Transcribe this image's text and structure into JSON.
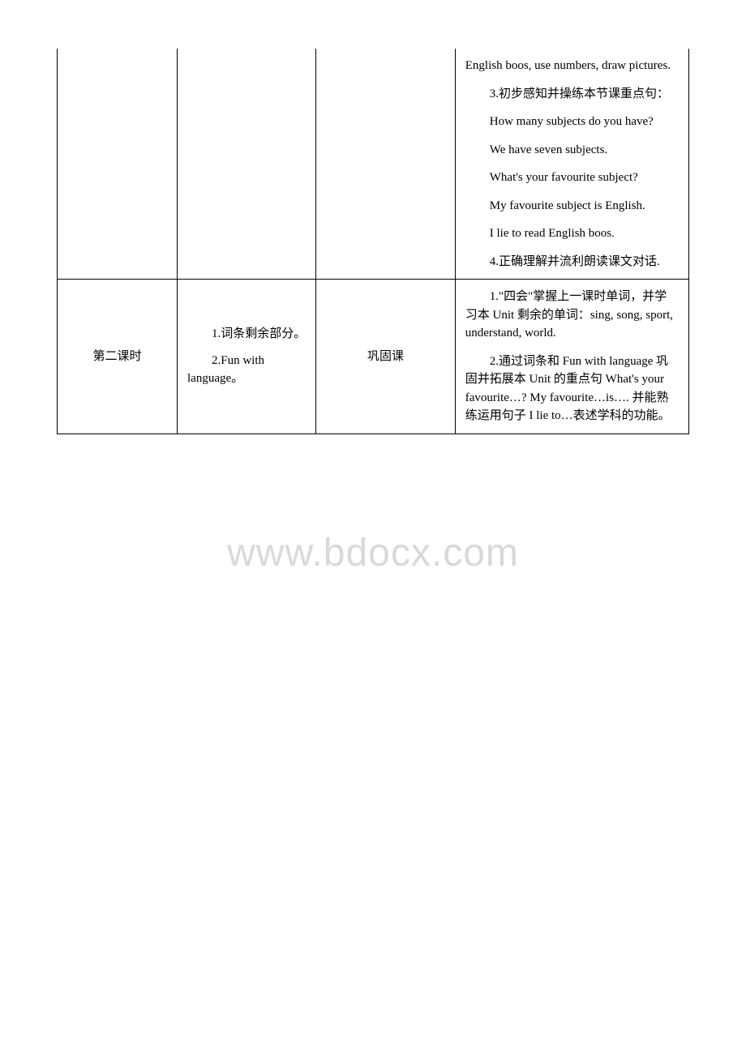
{
  "watermark": "www.bdocx.com",
  "row1": {
    "col1": "",
    "col2": "",
    "col3": "",
    "col4": {
      "p1": "English boos, use numbers, draw pictures.",
      "p2": "3.初步感知并操练本节课重点句：",
      "p3": "How many subjects do you have?",
      "p4": "We have seven subjects.",
      "p5": "What's your favourite subject?",
      "p6": "My favourite subject is English.",
      "p7": "I lie to read English boos.",
      "p8": "4.正确理解并流利朗读课文对话."
    }
  },
  "row2": {
    "col1": "第二课时",
    "col2": {
      "p1": "1.词条剩余部分。",
      "p2": "2.Fun with language。"
    },
    "col3": "巩固课",
    "col4": {
      "p1": "1.\"四会\"掌握上一课时单词，并学习本 Unit 剩余的单词：sing, song, sport, understand, world.",
      "p2": "2.通过词条和 Fun with language 巩固并拓展本 Unit 的重点句 What's your favourite…? My favourite…is…. 并能熟练运用句子 I lie to…表述学科的功能。"
    }
  }
}
